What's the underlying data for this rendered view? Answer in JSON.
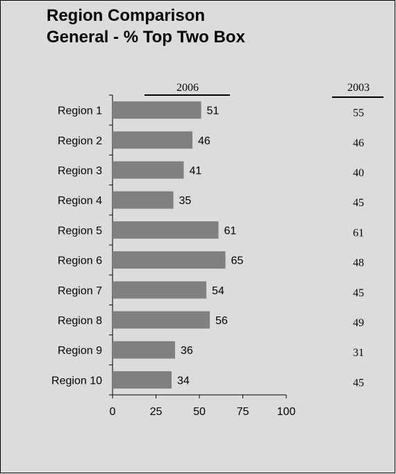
{
  "title": {
    "line1": "Region Comparison",
    "line2": "General - % Top Two Box"
  },
  "chart_data": {
    "type": "bar",
    "orientation": "horizontal",
    "categories": [
      "Region 1",
      "Region 2",
      "Region 3",
      "Region 4",
      "Region 5",
      "Region 6",
      "Region 7",
      "Region 8",
      "Region 9",
      "Region 10"
    ],
    "series": [
      {
        "name": "2006",
        "values": [
          51,
          46,
          41,
          35,
          61,
          65,
          54,
          56,
          36,
          34
        ]
      }
    ],
    "comparison_column": {
      "name": "2003",
      "values": [
        55,
        46,
        40,
        45,
        61,
        48,
        45,
        49,
        31,
        45
      ]
    },
    "xlim": [
      0,
      100
    ],
    "xticks": [
      0,
      25,
      50,
      75,
      100
    ],
    "grid": false,
    "colors": {
      "bar": "#808080",
      "background": "#dcdcdc"
    }
  }
}
